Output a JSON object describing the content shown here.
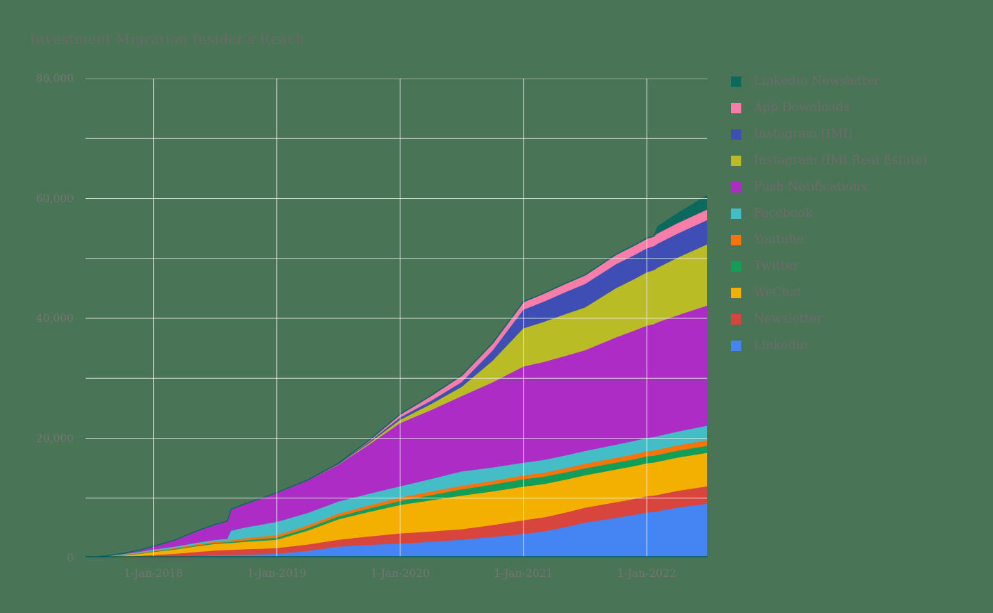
{
  "background_color": "#4a7456",
  "title": {
    "text": "Investment Migration Insider's Reach",
    "color": "#6a6a6a"
  },
  "plot": {
    "gridline_color": "rgba(238,242,238,0.85)",
    "baseline_color": "#0a5b50",
    "axis_label_color": "#757575",
    "legend_text_color": "#6c6c6c"
  },
  "axes": {
    "y": {
      "ticks": [
        {
          "value": 0,
          "label": "0"
        },
        {
          "value": 20000,
          "label": "20,000"
        },
        {
          "value": 40000,
          "label": "40,000"
        },
        {
          "value": 60000,
          "label": "60,000"
        },
        {
          "value": 80000,
          "label": "80,000"
        }
      ],
      "gridline_step": 10000
    },
    "x": {
      "ticks": [
        {
          "value": 2018.0,
          "label": "1-Jan-2018"
        },
        {
          "value": 2019.0,
          "label": "1-Jan-2019"
        },
        {
          "value": 2020.0,
          "label": "1-Jan-2020"
        },
        {
          "value": 2021.0,
          "label": "1-Jan-2021"
        },
        {
          "value": 2022.0,
          "label": "1-Jan-2022"
        }
      ]
    }
  },
  "chart_data": {
    "type": "area",
    "stacked": true,
    "title": "Investment Migration Insider's Reach",
    "xlabel": "",
    "ylabel": "",
    "x_unit": "decimal_year",
    "x_range": [
      2017.45,
      2022.49
    ],
    "ylim": [
      0,
      80000
    ],
    "grid": true,
    "legend_position": "right",
    "legend_order": "top_series_first",
    "x": [
      2017.45,
      2017.6,
      2017.75,
      2017.9,
      2018.0,
      2018.17,
      2018.33,
      2018.5,
      2018.6,
      2018.63,
      2018.75,
      2018.9,
      2019.0,
      2019.25,
      2019.5,
      2019.75,
      2020.0,
      2020.25,
      2020.5,
      2020.75,
      2021.0,
      2021.17,
      2021.33,
      2021.5,
      2021.75,
      2021.9,
      2022.0,
      2022.06,
      2022.09,
      2022.25,
      2022.49
    ],
    "series": [
      {
        "name": "Linkedin",
        "color": "#4484f3",
        "values": [
          0,
          30,
          60,
          110,
          150,
          220,
          330,
          450,
          490,
          500,
          560,
          640,
          700,
          1200,
          1900,
          2200,
          2400,
          2700,
          3050,
          3500,
          4000,
          4450,
          5100,
          5900,
          6700,
          7200,
          7600,
          7700,
          7800,
          8400,
          9050
        ]
      },
      {
        "name": "Newsletter",
        "color": "#d8453c",
        "values": [
          0,
          80,
          150,
          260,
          350,
          470,
          640,
          800,
          840,
          850,
          900,
          930,
          950,
          1050,
          1150,
          1400,
          1700,
          1720,
          1750,
          2000,
          2300,
          2350,
          2420,
          2500,
          2600,
          2650,
          2700,
          2720,
          2740,
          2800,
          2900
        ]
      },
      {
        "name": "WeChat",
        "color": "#f3b000",
        "values": [
          0,
          120,
          250,
          420,
          550,
          730,
          930,
          1100,
          1150,
          1160,
          1250,
          1330,
          1400,
          2300,
          3400,
          4100,
          4750,
          5200,
          5600,
          5600,
          5600,
          5550,
          5500,
          5400,
          5450,
          5480,
          5500,
          5510,
          5520,
          5550,
          5600
        ]
      },
      {
        "name": "Twitter",
        "color": "#129d58",
        "values": [
          0,
          10,
          25,
          45,
          60,
          90,
          120,
          150,
          160,
          165,
          250,
          310,
          350,
          420,
          470,
          560,
          660,
          860,
          1050,
          1150,
          1250,
          1230,
          1200,
          1160,
          1150,
          1150,
          1150,
          1150,
          1150,
          1155,
          1160
        ]
      },
      {
        "name": "Youtube",
        "color": "#f8730a",
        "values": [
          0,
          20,
          45,
          75,
          100,
          150,
          200,
          250,
          265,
          270,
          350,
          400,
          420,
          445,
          460,
          520,
          580,
          590,
          600,
          610,
          620,
          660,
          710,
          760,
          800,
          830,
          850,
          855,
          860,
          890,
          930
        ]
      },
      {
        "name": "Facebook",
        "color": "#45bdc6",
        "values": [
          0,
          30,
          80,
          140,
          190,
          215,
          245,
          270,
          280,
          1600,
          1800,
          2050,
          2200,
          2100,
          2040,
          1950,
          1860,
          2100,
          2400,
          2250,
          2130,
          2130,
          2130,
          2130,
          2200,
          2230,
          2250,
          2255,
          2270,
          2300,
          2430
        ]
      },
      {
        "name": "Push Notifications",
        "color": "#ae2cc6",
        "values": [
          0,
          60,
          150,
          350,
          580,
          1100,
          1900,
          2600,
          3000,
          3600,
          4000,
          4500,
          4900,
          5500,
          6200,
          8200,
          10550,
          11500,
          12560,
          14200,
          16040,
          16350,
          16600,
          16800,
          17900,
          18400,
          18700,
          18850,
          19000,
          19400,
          20050
        ]
      },
      {
        "name": "Instagram (IMI Real Estate)",
        "color": "#babc25",
        "values": [
          0,
          0,
          0,
          0,
          0,
          0,
          0,
          0,
          0,
          0,
          0,
          0,
          0,
          0,
          60,
          250,
          540,
          1000,
          1550,
          3600,
          6380,
          6700,
          6950,
          7150,
          8200,
          8600,
          8900,
          9000,
          9100,
          9600,
          10200
        ]
      },
      {
        "name": "Instagram (IMI)",
        "color": "#3e4eb4",
        "values": [
          0,
          0,
          0,
          0,
          0,
          0,
          0,
          0,
          0,
          0,
          0,
          0,
          0,
          0,
          50,
          200,
          390,
          550,
          780,
          1700,
          3100,
          3400,
          3650,
          3900,
          4000,
          4000,
          4000,
          4005,
          4010,
          4030,
          4060
        ]
      },
      {
        "name": "App Downloads",
        "color": "#f87ea9",
        "values": [
          0,
          0,
          0,
          0,
          0,
          0,
          0,
          0,
          0,
          0,
          0,
          0,
          0,
          0,
          80,
          300,
          580,
          900,
          1160,
          1260,
          1360,
          1410,
          1480,
          1550,
          1650,
          1680,
          1700,
          1705,
          1710,
          1720,
          1750
        ]
      },
      {
        "name": "Linkedin Newsletter",
        "color": "#0b695d",
        "values": [
          0,
          0,
          0,
          0,
          0,
          0,
          0,
          0,
          0,
          0,
          0,
          0,
          0,
          0,
          0,
          0,
          0,
          0,
          0,
          0,
          0,
          0,
          0,
          0,
          0,
          0,
          0,
          0,
          1100,
          1600,
          2300
        ]
      }
    ]
  }
}
